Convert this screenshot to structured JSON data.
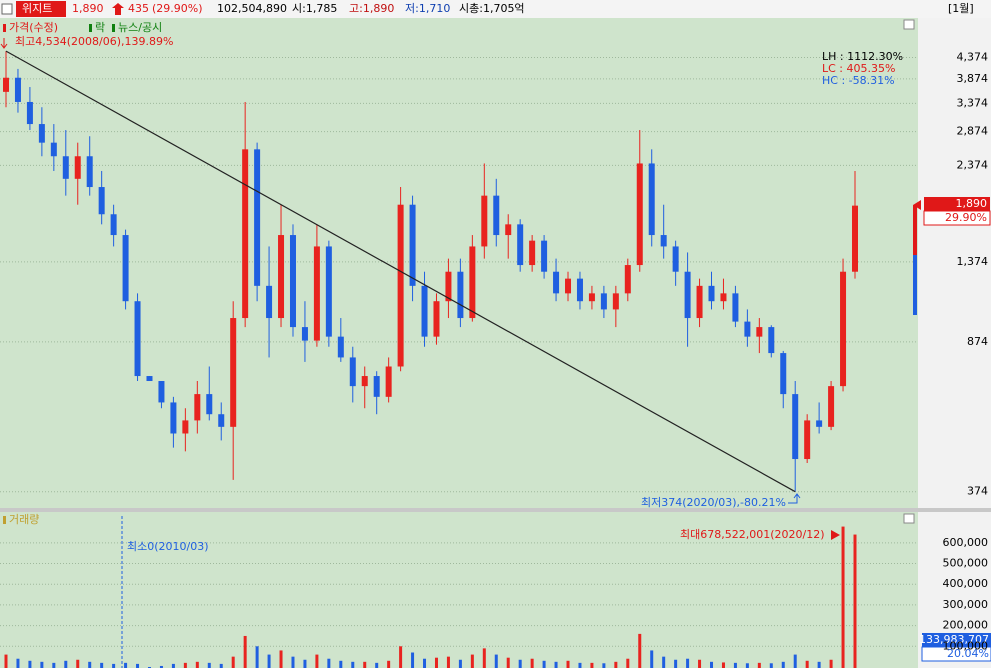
{
  "header": {
    "name": "위지트",
    "price": "1,890",
    "change": "435",
    "change_pct": "(29.90%)",
    "volume": "102,504,890",
    "open": "시:1,785",
    "high": "고:1,890",
    "low": "저:1,710",
    "cap": "시총:1,705억",
    "period": "[1월]"
  },
  "chart_data": {
    "type": "candlestick",
    "log_scale": true,
    "grid": true,
    "legend": [
      "가격(수정)",
      "락",
      "뉴스/공시"
    ],
    "up_color": "#e8231f",
    "down_color": "#1f5fe0",
    "annotations": {
      "high": "최고4,534(2008/06),139.89%",
      "low": "최저374(2020/03),-80.21%",
      "lh": "LH : 1112.30%",
      "lc": "LC : 405.35%",
      "hc": "HC : -58.31%",
      "last_price": "1,890",
      "last_pct": "29.90%"
    },
    "ylim": [
      341,
      5470
    ],
    "yticks": [
      {
        "value": 374,
        "label": "374"
      },
      {
        "value": 874,
        "label": "874"
      },
      {
        "value": 1374,
        "label": "1,374"
      },
      {
        "value": 2374,
        "label": "2,374"
      },
      {
        "value": 2874,
        "label": "2,874"
      },
      {
        "value": 3374,
        "label": "3,374"
      },
      {
        "value": 3874,
        "label": "3,874"
      },
      {
        "value": 4374,
        "label": "4,374"
      }
    ],
    "series": [
      {
        "name": "가격(수정)",
        "open": [
          3600,
          3900,
          3400,
          3000,
          2700,
          2500,
          2200,
          2500,
          2100,
          1800,
          1600,
          1100,
          720,
          700,
          620,
          520,
          560,
          650,
          580,
          540,
          1000,
          2600,
          1200,
          1000,
          1600,
          950,
          880,
          1500,
          900,
          800,
          680,
          720,
          640,
          760,
          1900,
          1200,
          900,
          1100,
          1300,
          1000,
          1500,
          2000,
          1600,
          1700,
          1350,
          1550,
          1300,
          1150,
          1250,
          1100,
          1150,
          1050,
          1150,
          1350,
          2400,
          1600,
          1500,
          1300,
          1000,
          1200,
          1100,
          1150,
          980,
          900,
          950,
          820,
          650,
          450,
          560,
          540,
          680,
          1300
        ],
        "high": [
          4534,
          4100,
          3700,
          3300,
          3000,
          2900,
          2700,
          2800,
          2300,
          1900,
          1650,
          1150,
          720,
          700,
          640,
          600,
          700,
          760,
          620,
          1100,
          3400,
          2700,
          1500,
          1900,
          1700,
          1100,
          1700,
          1550,
          1000,
          850,
          760,
          740,
          800,
          2100,
          2000,
          1300,
          1150,
          1400,
          1400,
          1600,
          2400,
          2200,
          1800,
          1750,
          1600,
          1600,
          1400,
          1300,
          1300,
          1200,
          1200,
          1200,
          1400,
          2900,
          2600,
          1900,
          1550,
          1450,
          1250,
          1300,
          1250,
          1200,
          1050,
          1000,
          960,
          830,
          700,
          580,
          620,
          700,
          1400,
          2300
        ],
        "low": [
          3300,
          3200,
          2900,
          2500,
          2300,
          2000,
          1900,
          2000,
          1700,
          1500,
          1050,
          700,
          700,
          600,
          480,
          470,
          520,
          560,
          500,
          400,
          950,
          1100,
          800,
          950,
          900,
          780,
          850,
          850,
          780,
          620,
          600,
          580,
          620,
          740,
          1100,
          850,
          860,
          1000,
          950,
          980,
          1400,
          1500,
          1400,
          1300,
          1300,
          1250,
          1100,
          1100,
          1050,
          1050,
          1000,
          950,
          1100,
          1300,
          1500,
          1400,
          1200,
          850,
          950,
          1050,
          1050,
          950,
          850,
          820,
          800,
          600,
          374,
          440,
          520,
          530,
          660,
          1250
        ],
        "close": [
          3900,
          3400,
          3000,
          2700,
          2500,
          2200,
          2500,
          2100,
          1800,
          1600,
          1100,
          720,
          700,
          620,
          520,
          560,
          650,
          580,
          540,
          1000,
          2600,
          1200,
          1000,
          1600,
          950,
          880,
          1500,
          900,
          800,
          680,
          720,
          640,
          760,
          1900,
          1200,
          900,
          1100,
          1300,
          1000,
          1500,
          2000,
          1600,
          1700,
          1350,
          1550,
          1300,
          1150,
          1250,
          1100,
          1150,
          1050,
          1150,
          1350,
          2400,
          1600,
          1500,
          1300,
          1000,
          1200,
          1100,
          1150,
          980,
          900,
          950,
          820,
          650,
          450,
          560,
          540,
          680,
          1300,
          1890
        ]
      }
    ],
    "volume": {
      "name": "거래량",
      "min_label": "최소0(2010/03)",
      "max_label": "최대678,522,001(2020/12)",
      "last_value": "133,983,707",
      "last_pct": "20.04%",
      "ylim": [
        0,
        720000
      ],
      "yticks": [
        {
          "value": 100000,
          "label": "100,000"
        },
        {
          "value": 200000,
          "label": "200,000"
        },
        {
          "value": 300000,
          "label": "300,000"
        },
        {
          "value": 400000,
          "label": "400,000"
        },
        {
          "value": 500000,
          "label": "500,000"
        },
        {
          "value": 600000,
          "label": "600,000"
        }
      ],
      "values": [
        60000,
        40000,
        30000,
        25000,
        20000,
        30000,
        35000,
        25000,
        20000,
        15000,
        20000,
        15000,
        0,
        5000,
        15000,
        20000,
        25000,
        20000,
        15000,
        50000,
        150000,
        100000,
        60000,
        80000,
        50000,
        35000,
        60000,
        40000,
        30000,
        25000,
        25000,
        20000,
        30000,
        100000,
        70000,
        40000,
        45000,
        50000,
        35000,
        60000,
        90000,
        60000,
        45000,
        35000,
        40000,
        30000,
        25000,
        30000,
        20000,
        20000,
        18000,
        25000,
        40000,
        160000,
        80000,
        50000,
        35000,
        40000,
        35000,
        25000,
        22000,
        20000,
        18000,
        20000,
        18000,
        25000,
        60000,
        30000,
        25000,
        35000,
        678522,
        640000
      ]
    }
  }
}
